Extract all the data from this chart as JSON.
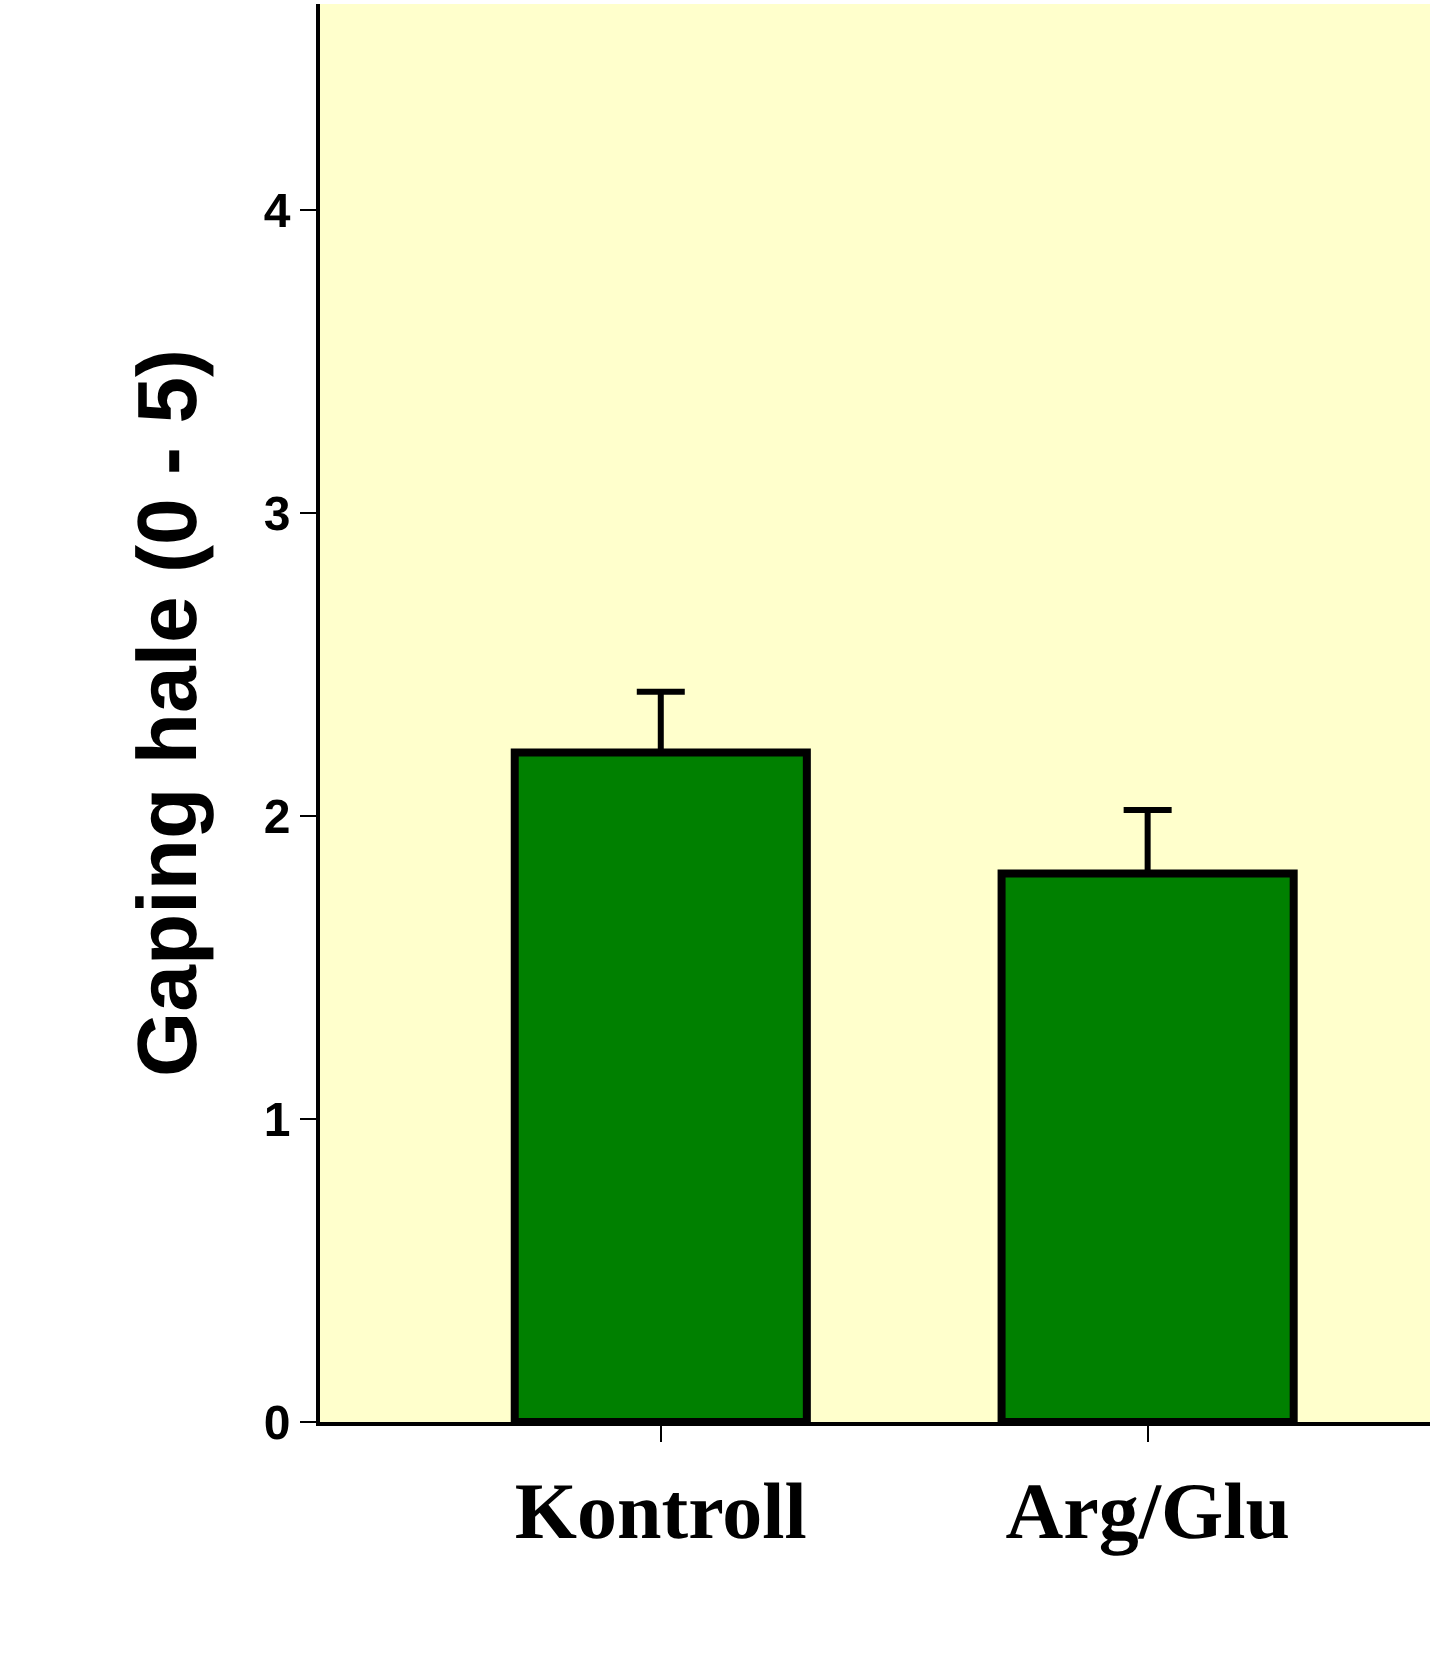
{
  "chart_data": {
    "type": "bar",
    "ylabel": "Gaping hale (0 - 5)",
    "categories": [
      "Kontroll",
      "Arg/Glu"
    ],
    "values": [
      2.21,
      1.81
    ],
    "color": "#008000",
    "errors": [
      [
        2.21,
        2.41
      ],
      [
        1.81,
        2.02
      ]
    ],
    "ylim": [
      0,
      4.68
    ],
    "yticks": [
      0,
      1,
      2,
      3,
      4
    ],
    "grid": false
  }
}
